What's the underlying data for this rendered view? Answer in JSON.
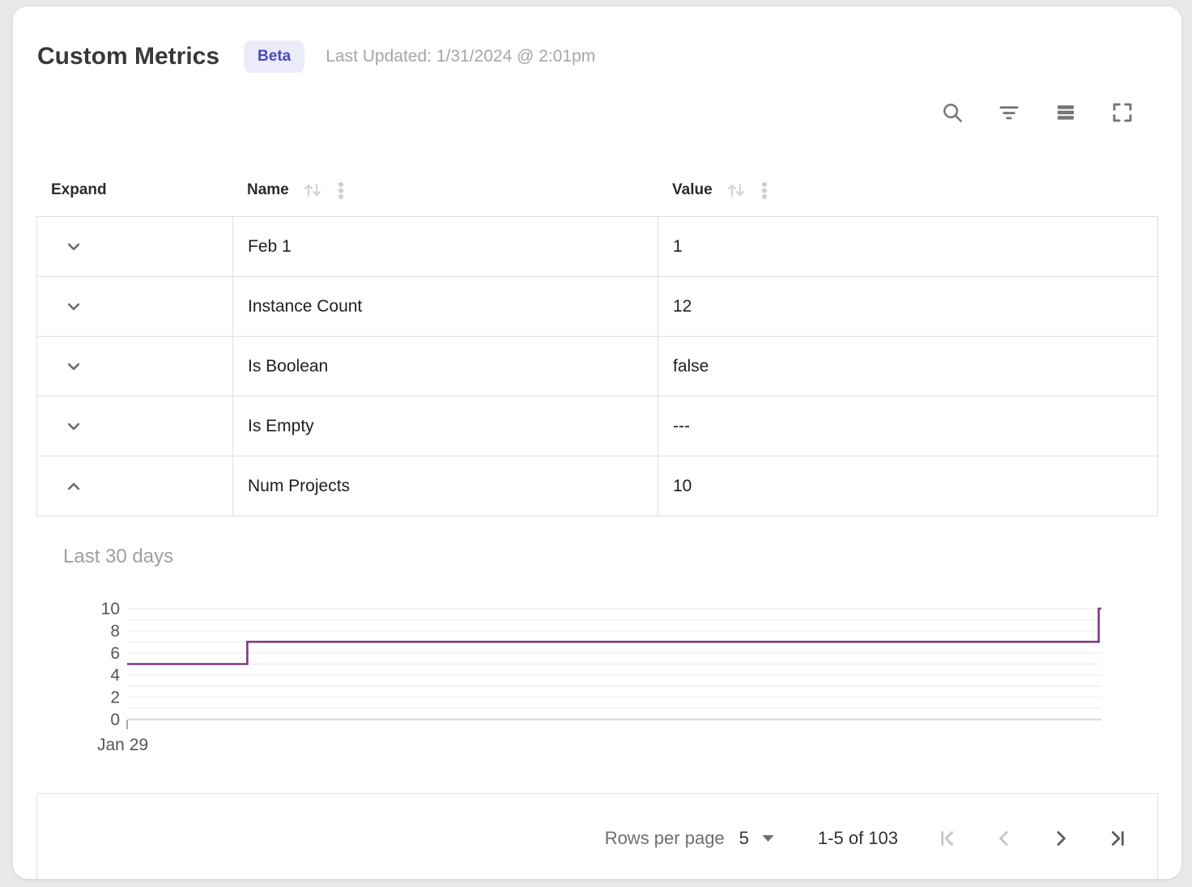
{
  "header": {
    "title": "Custom Metrics",
    "badge": "Beta",
    "last_updated": "Last Updated: 1/31/2024 @ 2:01pm"
  },
  "toolbar": {
    "icons": [
      "search-icon",
      "filter-icon",
      "density-icon",
      "fullscreen-icon"
    ]
  },
  "table": {
    "columns": [
      {
        "label": "Expand",
        "sortable": false
      },
      {
        "label": "Name",
        "sortable": true
      },
      {
        "label": "Value",
        "sortable": true
      }
    ],
    "rows": [
      {
        "name": "Feb 1",
        "value": "1",
        "expanded": false
      },
      {
        "name": "Instance Count",
        "value": "12",
        "expanded": false
      },
      {
        "name": "Is Boolean",
        "value": "false",
        "expanded": false
      },
      {
        "name": "Is Empty",
        "value": "---",
        "expanded": false
      },
      {
        "name": "Num Projects",
        "value": "10",
        "expanded": true
      }
    ]
  },
  "chart_data": {
    "type": "line",
    "step": "after",
    "title": "Last 30 days",
    "series": [
      {
        "name": "Num Projects",
        "points": [
          [
            0,
            5
          ],
          [
            3.7,
            7
          ],
          [
            29.92,
            10
          ],
          [
            30,
            10
          ]
        ]
      }
    ],
    "xlim": [
      0,
      30
    ],
    "ylim": [
      0,
      10
    ],
    "x_tick_labels": [
      {
        "x": 0,
        "label": "Jan 29"
      }
    ],
    "y_ticks": [
      0,
      2,
      4,
      6,
      8,
      10
    ],
    "grid_step": 1,
    "grid": "horizontal",
    "legend": "none",
    "line_color": "#7b3b7e",
    "grid_color": "#f1f1f1",
    "axis_line_color": "#dedede",
    "tick_color": "#a9a9a9",
    "tick_label_color": "#54545c"
  },
  "footer": {
    "rows_per_page_label": "Rows per page",
    "rows_per_page_value": "5",
    "range_label": "1-5 of 103",
    "first_disabled": true,
    "prev_disabled": true,
    "next_disabled": false,
    "last_disabled": false
  },
  "colors": {
    "badge_bg": "#ecebfa",
    "badge_text": "#4749bb",
    "table_border": "#e0e0e0",
    "chart_line": "#7b3b7e"
  }
}
